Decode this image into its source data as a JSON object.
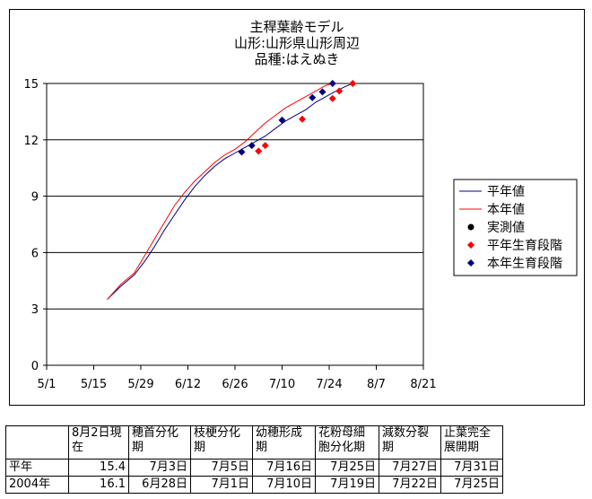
{
  "chart_data": {
    "type": "line",
    "title_lines": [
      "主稈葉齢モデル",
      "山形:山形県山形周辺",
      "品種:はえぬき"
    ],
    "x_tick_labels": [
      "5/1",
      "5/15",
      "5/29",
      "6/12",
      "6/26",
      "7/10",
      "7/24",
      "8/7",
      "8/21"
    ],
    "y_ticks": [
      0,
      3,
      6,
      9,
      12,
      15
    ],
    "ylim": [
      0,
      15
    ],
    "x_domain_days": [
      0,
      112
    ],
    "x_tick_step_days": 14,
    "grid": "horizontal",
    "legend_position": "right",
    "legend": [
      {
        "label": "平年値",
        "kind": "line",
        "color": "#000080"
      },
      {
        "label": "本年値",
        "kind": "line",
        "color": "#ff0000"
      },
      {
        "label": "実測値",
        "kind": "circle",
        "color": "#000000"
      },
      {
        "label": "平年生育段階",
        "kind": "diamond",
        "color": "#ff0000"
      },
      {
        "label": "本年生育段階",
        "kind": "diamond",
        "color": "#000080"
      }
    ],
    "series": [
      {
        "name": "平年値",
        "color": "#000080",
        "x": [
          "5/19",
          "5/23",
          "5/27",
          "5/30",
          "6/2",
          "6/5",
          "6/8",
          "6/11",
          "6/14",
          "6/17",
          "6/20",
          "6/23",
          "6/26",
          "6/29",
          "7/2",
          "7/5",
          "7/8",
          "7/11",
          "7/14",
          "7/17",
          "7/20",
          "7/23",
          "7/26",
          "7/29",
          "7/31"
        ],
        "y": [
          3.5,
          4.2,
          4.8,
          5.5,
          6.3,
          7.2,
          8.0,
          8.8,
          9.5,
          10.1,
          10.6,
          11.0,
          11.3,
          11.6,
          11.9,
          12.2,
          12.6,
          13.0,
          13.3,
          13.6,
          14.0,
          14.3,
          14.6,
          14.85,
          15.0
        ]
      },
      {
        "name": "本年値",
        "color": "#ff0000",
        "x": [
          "5/19",
          "5/23",
          "5/27",
          "5/30",
          "6/2",
          "6/5",
          "6/8",
          "6/11",
          "6/14",
          "6/17",
          "6/20",
          "6/23",
          "6/26",
          "6/29",
          "7/2",
          "7/5",
          "7/8",
          "7/11",
          "7/14",
          "7/17",
          "7/20",
          "7/23",
          "7/25"
        ],
        "y": [
          3.5,
          4.3,
          4.9,
          5.8,
          6.7,
          7.6,
          8.5,
          9.2,
          9.8,
          10.3,
          10.8,
          11.2,
          11.5,
          11.9,
          12.4,
          12.9,
          13.3,
          13.7,
          14.0,
          14.3,
          14.6,
          14.9,
          15.0
        ]
      },
      {
        "name": "平年生育段階",
        "marker": "diamond",
        "color": "#ff0000",
        "x": [
          "7/3",
          "7/5",
          "7/16",
          "7/25",
          "7/27",
          "7/31"
        ],
        "y": [
          11.4,
          11.7,
          13.1,
          14.2,
          14.6,
          15.0
        ]
      },
      {
        "name": "本年生育段階",
        "marker": "diamond",
        "color": "#000080",
        "x": [
          "6/28",
          "7/1",
          "7/10",
          "7/19",
          "7/22",
          "7/25"
        ],
        "y": [
          11.35,
          11.7,
          13.05,
          14.25,
          14.55,
          15.0
        ]
      }
    ]
  },
  "table": {
    "headers": [
      "",
      "8月2日現在",
      "穂首分化期",
      "枝梗分化期",
      "幼穂形成期",
      "花粉母細胞分化期",
      "減数分裂期",
      "止葉完全展開期"
    ],
    "rows": [
      [
        "平年",
        "15.4",
        "7月3日",
        "7月5日",
        "7月16日",
        "7月25日",
        "7月27日",
        "7月31日"
      ],
      [
        "2004年",
        "16.1",
        "6月28日",
        "7月1日",
        "7月10日",
        "7月19日",
        "7月22日",
        "7月25日"
      ]
    ]
  }
}
